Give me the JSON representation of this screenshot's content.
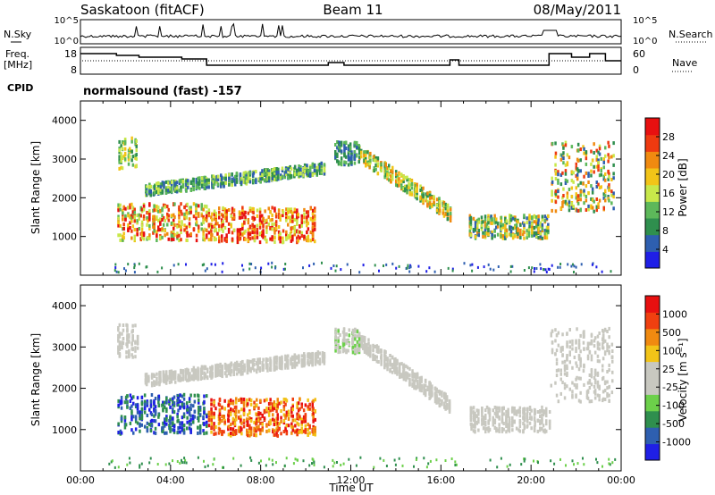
{
  "header": {
    "station": "Saskatoon (fitACF)",
    "beam": "Beam 11",
    "date": "08/May/2011"
  },
  "top_panels": {
    "noise_left_label": "N.Sky",
    "noise_right_label": "N.Search",
    "noise_ticks_left": [
      "10^5",
      "10^0"
    ],
    "noise_ticks_right": [
      "10^5",
      "10^0"
    ],
    "freq_label_line1": "Freq.",
    "freq_label_line2": "[MHz]",
    "freq_ticks": [
      "18",
      "8"
    ],
    "nave_label": "Nave",
    "nave_ticks": [
      "60",
      "0"
    ],
    "cpid_label": "CPID",
    "cpid_text": "normalsound (fast) -157"
  },
  "colors": {
    "power": [
      "#1f1fe6",
      "#2e5fb0",
      "#2f8f4e",
      "#5db85a",
      "#c8e84a",
      "#f2c418",
      "#f08a10",
      "#ee3a10",
      "#e81010"
    ],
    "velocity": [
      "#e81010",
      "#f04010",
      "#f08a10",
      "#f2c418",
      "#c8c8c0",
      "#c8c8c0",
      "#6cd04a",
      "#2f8f4e",
      "#2e5fb0",
      "#1f1fe6"
    ]
  },
  "chart_data": [
    {
      "type": "heatmap",
      "name": "power",
      "xlabel": "",
      "ylabel": "Slant Range [km]",
      "xlim": [
        0,
        24
      ],
      "ylim": [
        0,
        4500
      ],
      "yticks": [
        "1000",
        "2000",
        "3000",
        "4000"
      ],
      "colorbar_label": "Power [dB]",
      "colorbar_ticks": [
        "4",
        "8",
        "12",
        "16",
        "20",
        "24",
        "28"
      ],
      "colorbar_range": [
        0,
        30
      ]
    },
    {
      "type": "heatmap",
      "name": "velocity",
      "xlabel": "Time UT",
      "ylabel": "Slant Range [km]",
      "xlim": [
        0,
        24
      ],
      "ylim": [
        0,
        4500
      ],
      "xticks": [
        "00:00",
        "04:00",
        "08:00",
        "12:00",
        "16:00",
        "20:00",
        "00:00"
      ],
      "yticks": [
        "1000",
        "2000",
        "3000",
        "4000"
      ],
      "colorbar_label": "Velocity [m s⁻¹]",
      "colorbar_ticks": [
        "1000",
        "500",
        "100",
        "25",
        "-25",
        "-100",
        "-500",
        "-1000"
      ]
    }
  ]
}
